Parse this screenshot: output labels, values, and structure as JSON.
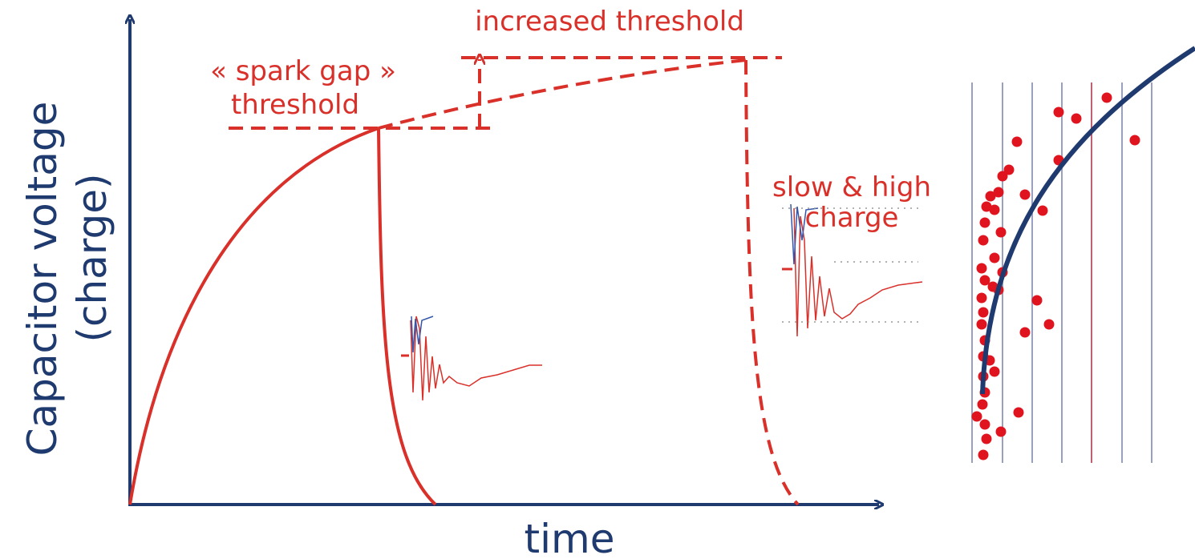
{
  "labels": {
    "increased_threshold": "increased threshold",
    "spark_gap_1": "« spark gap »",
    "spark_gap_2": "threshold",
    "slow_high_1": "slow & high",
    "slow_high_2": "charge"
  },
  "axes": {
    "y_label_1": "Capacitor voltage",
    "y_label_2": "(charge)",
    "x_label": "time"
  }
}
